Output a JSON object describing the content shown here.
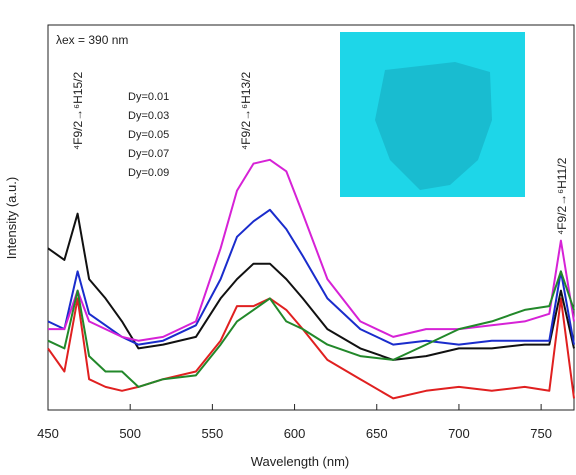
{
  "chart_data": {
    "type": "line",
    "x_label": "Wavelength (nm)",
    "y_label": "Intensity (a.u.)",
    "annotations": [
      "λex = 390 nm",
      "⁴F9/2→⁶H15/2",
      "⁴F9/2→⁶H13/2",
      "⁴F9/2→⁶H11/2"
    ],
    "x": [
      450,
      460,
      468,
      475,
      485,
      495,
      505,
      520,
      540,
      555,
      565,
      575,
      585,
      595,
      605,
      620,
      640,
      660,
      680,
      700,
      720,
      740,
      755,
      762,
      770
    ],
    "series": [
      {
        "name": "Dy=0.01",
        "color": "#e02020",
        "values": [
          16,
          10,
          29,
          8,
          6,
          5,
          6,
          8,
          10,
          18,
          27,
          27,
          29,
          26,
          21,
          13,
          8,
          3,
          5,
          6,
          5,
          6,
          5,
          29,
          3
        ]
      },
      {
        "name": "Dy=0.03",
        "color": "#111111",
        "values": [
          42,
          39,
          51,
          34,
          29,
          23,
          16,
          17,
          19,
          29,
          34,
          38,
          38,
          34,
          29,
          21,
          16,
          13,
          14,
          16,
          16,
          17,
          17,
          31,
          16
        ]
      },
      {
        "name": "Dy=0.05",
        "color": "#1a2ccc",
        "values": [
          23,
          21,
          36,
          25,
          22,
          19,
          17,
          18,
          22,
          34,
          45,
          49,
          52,
          47,
          40,
          29,
          21,
          17,
          18,
          17,
          18,
          18,
          18,
          36,
          17
        ]
      },
      {
        "name": "Dy=0.07",
        "color": "#d622d6",
        "values": [
          21,
          21,
          31,
          23,
          21,
          19,
          18,
          19,
          23,
          42,
          57,
          64,
          65,
          62,
          51,
          34,
          23,
          19,
          21,
          21,
          22,
          23,
          25,
          44,
          23
        ]
      },
      {
        "name": "Dy=0.09",
        "color": "#22882a",
        "values": [
          18,
          16,
          31,
          14,
          10,
          10,
          6,
          8,
          9,
          17,
          23,
          26,
          29,
          23,
          21,
          17,
          14,
          13,
          17,
          21,
          23,
          26,
          27,
          36,
          26
        ]
      }
    ],
    "xlim": [
      450,
      770
    ],
    "xticks": [
      450,
      500,
      550,
      600,
      650,
      700,
      750
    ],
    "ylim": [
      0,
      100
    ]
  }
}
